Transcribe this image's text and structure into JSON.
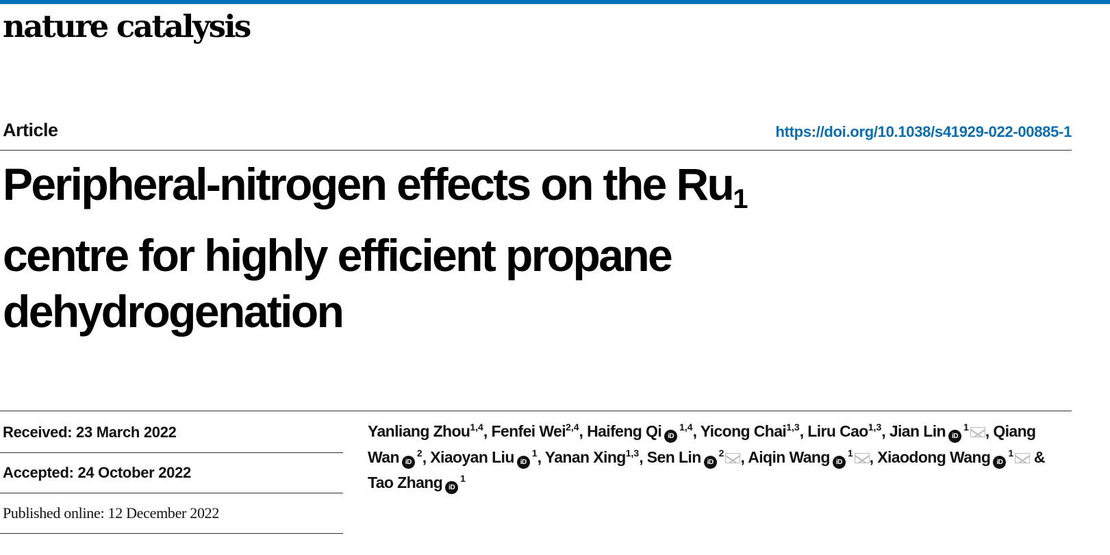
{
  "header": {
    "journal": "nature catalysis",
    "accent_color": "#0070b8",
    "article_type": "Article",
    "doi": "https://doi.org/10.1038/s41929-022-00885-1"
  },
  "title": {
    "line1": "Peripheral-nitrogen effects on the Ru",
    "subscript": "1",
    "line2": "centre for highly efficient propane",
    "line3": "dehydrogenation"
  },
  "dates": {
    "received": "Received: 23 March 2022",
    "accepted": "Accepted: 24 October 2022",
    "published": "Published online: 12 December 2022"
  },
  "authors": [
    {
      "name": "Yanliang Zhou",
      "aff": "1,4",
      "orcid": false,
      "mail": false,
      "sep": ", "
    },
    {
      "name": "Fenfei Wei",
      "aff": "2,4",
      "orcid": false,
      "mail": false,
      "sep": ", "
    },
    {
      "name": "Haifeng Qi",
      "aff": "1,4",
      "orcid": true,
      "mail": false,
      "sep": ", "
    },
    {
      "name": "Yicong Chai",
      "aff": "1,3",
      "orcid": false,
      "mail": false,
      "sep": ", "
    },
    {
      "name": "Liru Cao",
      "aff": "1,3",
      "orcid": false,
      "mail": false,
      "sep": ", "
    },
    {
      "name": "Jian Lin",
      "aff": "1",
      "orcid": true,
      "mail": true,
      "sep": ", "
    },
    {
      "name": "Qiang Wan",
      "aff": "2",
      "orcid": true,
      "mail": false,
      "sep": ", "
    },
    {
      "name": "Xiaoyan Liu",
      "aff": "1",
      "orcid": true,
      "mail": false,
      "sep": ", "
    },
    {
      "name": "Yanan Xing",
      "aff": "1,3",
      "orcid": false,
      "mail": false,
      "sep": ", "
    },
    {
      "name": "Sen Lin",
      "aff": "2",
      "orcid": true,
      "mail": true,
      "sep": ", "
    },
    {
      "name": "Aiqin Wang",
      "aff": "1",
      "orcid": true,
      "mail": true,
      "sep": ", "
    },
    {
      "name": "Xiaodong Wang",
      "aff": "1",
      "orcid": true,
      "mail": true,
      "sep": " & "
    },
    {
      "name": "Tao Zhang",
      "aff": "1",
      "orcid": true,
      "mail": false,
      "sep": ""
    }
  ],
  "icons": {
    "orcid": "orcid-icon",
    "orcid_glyph": "iD",
    "mail": "mail-icon"
  }
}
